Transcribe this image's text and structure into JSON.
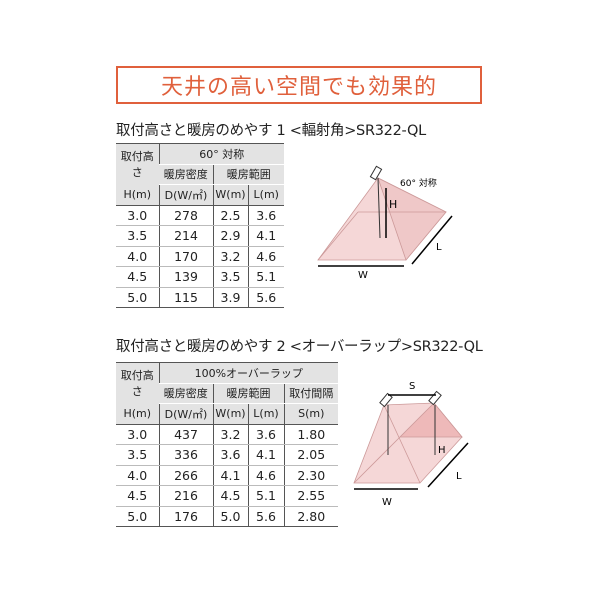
{
  "banner": "天井の高い空間でも効果的",
  "section1": {
    "title": "取付高さと暖房のめやす 1 <輻射角>SR322-QL",
    "header": {
      "col0": "取付高さ",
      "col0_unit": "H(m)",
      "group": "60° 対称",
      "density": "暖房密度",
      "range": "暖房範囲",
      "d_unit": "D(W/㎡)",
      "w_unit": "W(m)",
      "l_unit": "L(m)"
    },
    "rows": [
      [
        "3.0",
        "278",
        "2.5",
        "3.6"
      ],
      [
        "3.5",
        "214",
        "2.9",
        "4.1"
      ],
      [
        "4.0",
        "170",
        "3.2",
        "4.6"
      ],
      [
        "4.5",
        "139",
        "3.5",
        "5.1"
      ],
      [
        "5.0",
        "115",
        "3.9",
        "5.6"
      ]
    ],
    "diagram": {
      "angle_label": "60° 対称",
      "h": "H",
      "l": "L",
      "w": "W"
    }
  },
  "section2": {
    "title": "取付高さと暖房のめやす 2 <オーバーラップ>SR322-QL",
    "header": {
      "col0": "取付高さ",
      "col0_unit": "H(m)",
      "group": "100%オーバーラップ",
      "density": "暖房密度",
      "range": "暖房範囲",
      "spacing": "取付間隔",
      "d_unit": "D(W/㎡)",
      "w_unit": "W(m)",
      "l_unit": "L(m)",
      "s_unit": "S(m)"
    },
    "rows": [
      [
        "3.0",
        "437",
        "3.2",
        "3.6",
        "1.80"
      ],
      [
        "3.5",
        "336",
        "3.6",
        "4.1",
        "2.05"
      ],
      [
        "4.0",
        "266",
        "4.1",
        "4.6",
        "2.30"
      ],
      [
        "4.5",
        "216",
        "4.5",
        "5.1",
        "2.55"
      ],
      [
        "5.0",
        "176",
        "5.0",
        "5.6",
        "2.80"
      ]
    ],
    "diagram": {
      "s": "S",
      "h": "H",
      "l": "L",
      "w": "W"
    }
  },
  "colors": {
    "accent": "#e0603c",
    "cone": "#f3d4d4"
  }
}
